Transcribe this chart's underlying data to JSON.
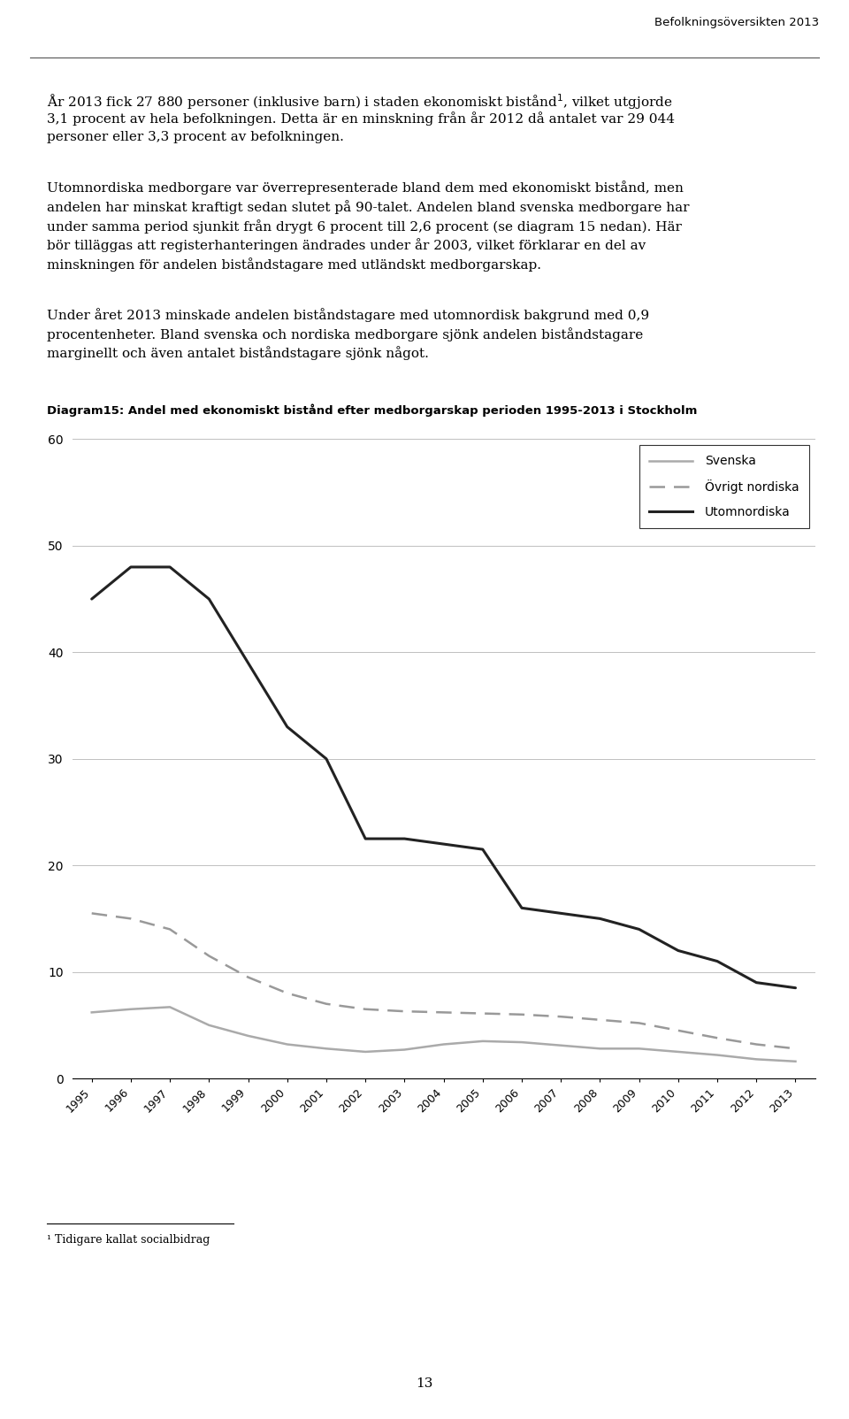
{
  "years": [
    1995,
    1996,
    1997,
    1998,
    1999,
    2000,
    2001,
    2002,
    2003,
    2004,
    2005,
    2006,
    2007,
    2008,
    2009,
    2010,
    2011,
    2012,
    2013
  ],
  "svenska": [
    6.2,
    6.5,
    6.7,
    5.0,
    4.0,
    3.2,
    2.8,
    2.5,
    2.7,
    3.2,
    3.5,
    3.4,
    3.1,
    2.8,
    2.8,
    2.5,
    2.2,
    1.8,
    1.6
  ],
  "ovrigt_nordiska": [
    15.5,
    15.0,
    14.0,
    11.5,
    9.5,
    8.0,
    7.0,
    6.5,
    6.3,
    6.2,
    6.1,
    6.0,
    5.8,
    5.5,
    5.2,
    4.5,
    3.8,
    3.2,
    2.8
  ],
  "utomnordiska": [
    45.0,
    48.0,
    48.0,
    45.0,
    39.0,
    33.0,
    30.0,
    22.5,
    22.5,
    22.0,
    21.5,
    16.0,
    15.5,
    15.0,
    14.0,
    12.0,
    11.0,
    9.0,
    8.5
  ],
  "svenska_color": "#aaaaaa",
  "nordiska_color": "#999999",
  "utomnordiska_color": "#222222",
  "title": "Diagram15: Andel med ekonomiskt bistånd efter medborgarskap perioden 1995-2013 i Stockholm",
  "ylim": [
    0,
    60
  ],
  "yticks": [
    0,
    10,
    20,
    30,
    40,
    50,
    60
  ],
  "legend_svenska": "Svenska",
  "legend_nordiska": "Övrigt nordiska",
  "legend_utomnordiska": "Utomnordiska",
  "header_text": "Befolkningsöversikten 2013",
  "footnote": "¹ Tidigare kallat socialbidrag",
  "page_number": "13"
}
